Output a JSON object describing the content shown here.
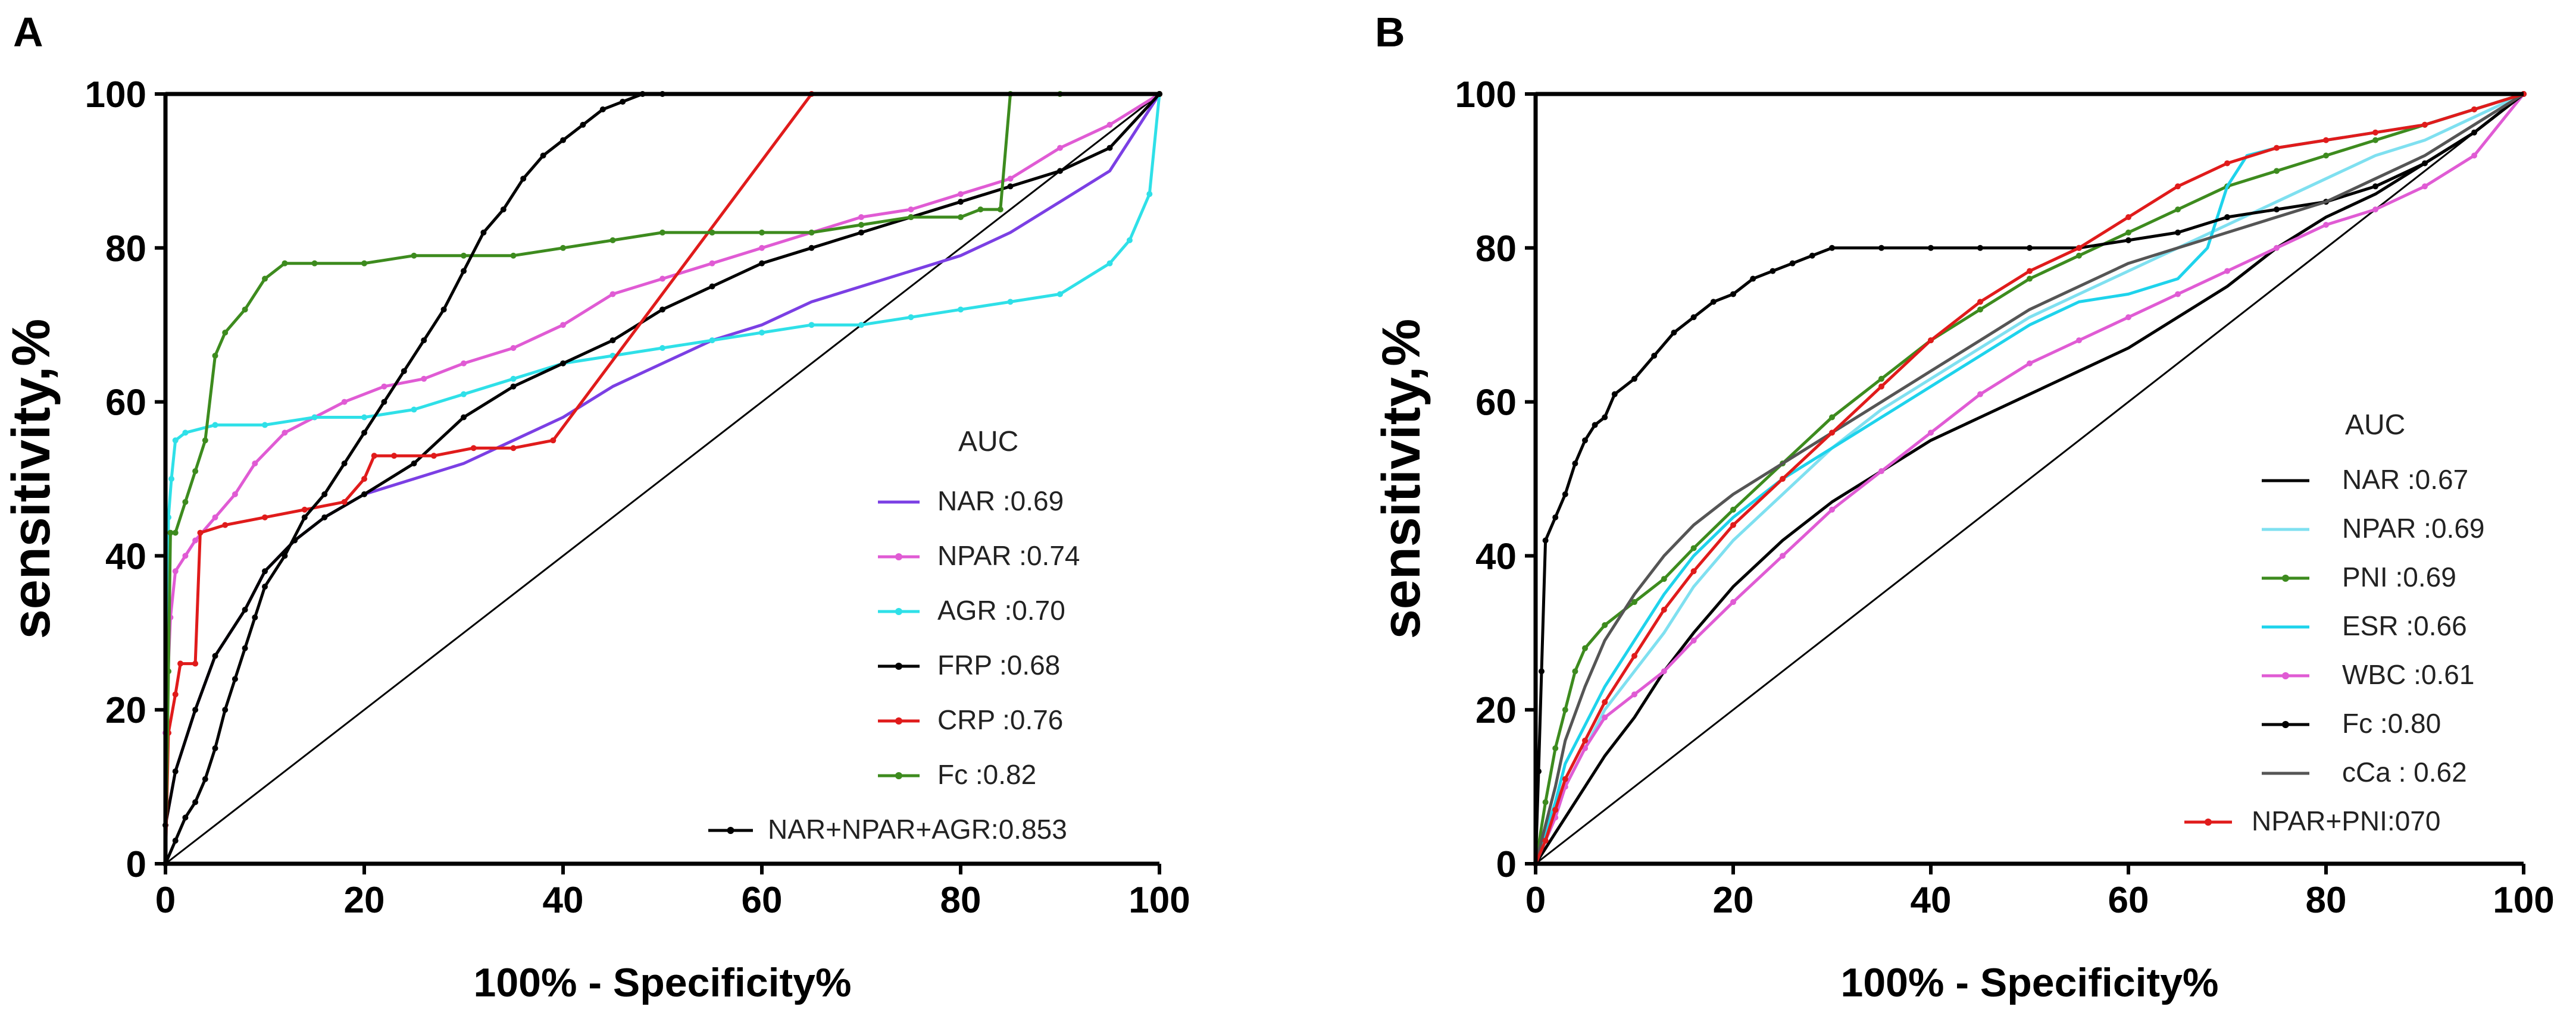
{
  "chart_data": [
    {
      "type": "line",
      "panel_label": "A",
      "xlabel": "100% - Specificity%",
      "ylabel": "sensitivity,%",
      "xlim": [
        0,
        100
      ],
      "ylim": [
        0,
        100
      ],
      "xticks": [
        "0",
        "20",
        "40",
        "60",
        "80",
        "100"
      ],
      "yticks": [
        "0",
        "20",
        "40",
        "60",
        "80",
        "100"
      ],
      "legend_title": "AUC",
      "legend_position": "bottom-right",
      "reference_line": true,
      "series": [
        {
          "name": "NAR",
          "legend": ":0.69",
          "color": "#7b3fe4",
          "markers": false,
          "x": [
            0,
            1,
            3,
            5,
            8,
            10,
            13,
            16,
            20,
            25,
            30,
            35,
            40,
            45,
            50,
            55,
            60,
            65,
            70,
            75,
            80,
            85,
            90,
            95,
            100
          ],
          "y": [
            5,
            12,
            20,
            27,
            33,
            38,
            42,
            45,
            48,
            50,
            52,
            55,
            58,
            62,
            65,
            68,
            70,
            73,
            75,
            77,
            79,
            82,
            86,
            90,
            100
          ]
        },
        {
          "name": "NPAR",
          "legend": ":0.74",
          "color": "#e05bd4",
          "markers": true,
          "x": [
            0,
            0.5,
            1,
            2,
            3,
            5,
            7,
            9,
            12,
            15,
            18,
            22,
            26,
            30,
            35,
            40,
            45,
            50,
            55,
            60,
            65,
            70,
            75,
            80,
            85,
            90,
            95,
            100
          ],
          "y": [
            17,
            32,
            38,
            40,
            42,
            45,
            48,
            52,
            56,
            58,
            60,
            62,
            63,
            65,
            67,
            70,
            74,
            76,
            78,
            80,
            82,
            84,
            85,
            87,
            89,
            93,
            96,
            100
          ]
        },
        {
          "name": "AGR",
          "legend": ":0.70",
          "color": "#2fe0e8",
          "markers": true,
          "x": [
            0,
            0.3,
            0.6,
            1,
            2,
            5,
            10,
            15,
            20,
            25,
            30,
            35,
            40,
            45,
            50,
            55,
            60,
            65,
            70,
            75,
            80,
            85,
            90,
            95,
            97,
            99,
            100
          ],
          "y": [
            0,
            45,
            50,
            55,
            56,
            57,
            57,
            58,
            58,
            59,
            61,
            63,
            65,
            66,
            67,
            68,
            69,
            70,
            70,
            71,
            72,
            73,
            74,
            78,
            81,
            87,
            100
          ]
        },
        {
          "name": "FRP",
          "legend": ":0.68",
          "color": "#000000",
          "markers": true,
          "x": [
            0,
            1,
            3,
            5,
            8,
            10,
            13,
            16,
            20,
            25,
            30,
            35,
            40,
            45,
            50,
            55,
            60,
            65,
            70,
            75,
            80,
            85,
            90,
            95,
            100
          ],
          "y": [
            5,
            12,
            20,
            27,
            33,
            38,
            42,
            45,
            48,
            52,
            58,
            62,
            65,
            68,
            72,
            75,
            78,
            80,
            82,
            84,
            86,
            88,
            90,
            93,
            100
          ]
        },
        {
          "name": "CRP",
          "legend": ":0.76",
          "color": "#e01b1b",
          "markers": true,
          "x": [
            0,
            0.3,
            1,
            1.5,
            3,
            3.5,
            6,
            10,
            14,
            18,
            20,
            21,
            23,
            27,
            31,
            35,
            39,
            65,
            100
          ],
          "y": [
            0,
            17,
            22,
            26,
            26,
            43,
            44,
            45,
            46,
            47,
            50,
            53,
            53,
            53,
            54,
            54,
            55,
            100,
            100
          ]
        },
        {
          "name": "Fc",
          "legend": ":0.82",
          "color": "#3d8b1e",
          "markers": true,
          "x": [
            0,
            0.3,
            0.5,
            1,
            2,
            3,
            4,
            5,
            6,
            8,
            10,
            12,
            15,
            20,
            25,
            30,
            35,
            40,
            45,
            50,
            55,
            60,
            65,
            70,
            75,
            80,
            82,
            84,
            85,
            90,
            100
          ],
          "y": [
            0,
            25,
            43,
            43,
            47,
            51,
            55,
            66,
            69,
            72,
            76,
            78,
            78,
            78,
            79,
            79,
            79,
            80,
            81,
            82,
            82,
            82,
            82,
            83,
            84,
            84,
            85,
            85,
            100,
            100,
            100
          ]
        },
        {
          "name": "NAR+NPAR+AGR",
          "legend": ":0.853",
          "color": "#000000",
          "markers": true,
          "x": [
            0,
            1,
            2,
            3,
            4,
            5,
            6,
            7,
            8,
            9,
            10,
            12,
            14,
            16,
            18,
            20,
            22,
            24,
            26,
            28,
            30,
            32,
            34,
            36,
            38,
            40,
            42,
            44,
            46,
            48,
            50,
            100
          ],
          "y": [
            0,
            3,
            6,
            8,
            11,
            15,
            20,
            24,
            28,
            32,
            36,
            40,
            45,
            48,
            52,
            56,
            60,
            64,
            68,
            72,
            77,
            82,
            85,
            89,
            92,
            94,
            96,
            98,
            99,
            100,
            100,
            100
          ]
        }
      ]
    },
    {
      "type": "line",
      "panel_label": "B",
      "xlabel": "100% - Specificity%",
      "ylabel": "sensitivity,%",
      "xlim": [
        0,
        100
      ],
      "ylim": [
        0,
        100
      ],
      "xticks": [
        "0",
        "20",
        "40",
        "60",
        "80",
        "100"
      ],
      "yticks": [
        "0",
        "20",
        "40",
        "60",
        "80",
        "100"
      ],
      "legend_title": "AUC",
      "legend_position": "bottom-right",
      "reference_line": true,
      "series": [
        {
          "name": "NAR",
          "legend": ":0.67",
          "color": "#000000",
          "markers": false,
          "x": [
            0,
            1,
            2,
            3,
            5,
            7,
            10,
            13,
            16,
            20,
            25,
            30,
            35,
            40,
            45,
            50,
            55,
            60,
            65,
            70,
            75,
            80,
            85,
            90,
            95,
            100
          ],
          "y": [
            0,
            2,
            4,
            6,
            10,
            14,
            19,
            25,
            30,
            36,
            42,
            47,
            51,
            55,
            58,
            61,
            64,
            67,
            71,
            75,
            80,
            84,
            87,
            91,
            95,
            100
          ]
        },
        {
          "name": "NPAR",
          "legend": ":0.69",
          "color": "#7fe0f0",
          "markers": false,
          "x": [
            0,
            1,
            2,
            3,
            5,
            7,
            10,
            13,
            16,
            20,
            25,
            30,
            35,
            40,
            45,
            50,
            55,
            60,
            65,
            70,
            75,
            80,
            85,
            90,
            95,
            100
          ],
          "y": [
            0,
            3,
            6,
            10,
            15,
            20,
            25,
            30,
            36,
            42,
            48,
            54,
            59,
            63,
            67,
            71,
            74,
            77,
            80,
            83,
            86,
            89,
            92,
            94,
            97,
            100
          ]
        },
        {
          "name": "PNI",
          "legend": ":0.69",
          "color": "#3d8b1e",
          "markers": true,
          "x": [
            0,
            1,
            2,
            3,
            4,
            5,
            7,
            10,
            13,
            16,
            20,
            25,
            30,
            35,
            40,
            45,
            50,
            55,
            60,
            65,
            70,
            75,
            80,
            85,
            90,
            95,
            100
          ],
          "y": [
            0,
            8,
            15,
            20,
            25,
            28,
            31,
            34,
            37,
            41,
            46,
            52,
            58,
            63,
            68,
            72,
            76,
            79,
            82,
            85,
            88,
            90,
            92,
            94,
            96,
            98,
            100
          ]
        },
        {
          "name": "ESR",
          "legend": ":0.66",
          "color": "#1ed3ec",
          "markers": false,
          "x": [
            0,
            1,
            2,
            3,
            5,
            7,
            10,
            13,
            16,
            20,
            25,
            30,
            35,
            40,
            45,
            50,
            55,
            60,
            65,
            68,
            70,
            72,
            75,
            80,
            85,
            90,
            95,
            100
          ],
          "y": [
            0,
            4,
            8,
            13,
            18,
            23,
            29,
            35,
            40,
            45,
            50,
            54,
            58,
            62,
            66,
            70,
            73,
            74,
            76,
            80,
            88,
            92,
            93,
            94,
            95,
            96,
            98,
            100
          ]
        },
        {
          "name": "WBC",
          "legend": ":0.61",
          "color": "#e05bd4",
          "markers": true,
          "x": [
            0,
            1,
            2,
            3,
            5,
            7,
            10,
            13,
            16,
            20,
            25,
            30,
            35,
            40,
            45,
            50,
            55,
            60,
            65,
            70,
            75,
            80,
            85,
            90,
            95,
            100
          ],
          "y": [
            0,
            3,
            6,
            10,
            15,
            19,
            22,
            25,
            29,
            34,
            40,
            46,
            51,
            56,
            61,
            65,
            68,
            71,
            74,
            77,
            80,
            83,
            85,
            88,
            92,
            100
          ]
        },
        {
          "name": "Fc",
          "legend": ":0.80",
          "color": "#000000",
          "markers": true,
          "x": [
            0,
            0.3,
            0.6,
            1,
            2,
            3,
            4,
            5,
            6,
            7,
            8,
            10,
            12,
            14,
            16,
            18,
            20,
            22,
            24,
            26,
            28,
            30,
            35,
            40,
            45,
            50,
            55,
            60,
            65,
            70,
            75,
            80,
            85,
            90,
            95,
            100
          ],
          "y": [
            0,
            12,
            25,
            42,
            45,
            48,
            52,
            55,
            57,
            58,
            61,
            63,
            66,
            69,
            71,
            73,
            74,
            76,
            77,
            78,
            79,
            80,
            80,
            80,
            80,
            80,
            80,
            81,
            82,
            84,
            85,
            86,
            88,
            91,
            95,
            100
          ]
        },
        {
          "name": "cCa",
          "legend": ": 0.62",
          "color": "#555555",
          "markers": false,
          "x": [
            0,
            1,
            2,
            3,
            5,
            7,
            10,
            13,
            16,
            20,
            25,
            30,
            35,
            40,
            45,
            50,
            55,
            60,
            65,
            70,
            75,
            80,
            85,
            90,
            95,
            100
          ],
          "y": [
            0,
            5,
            10,
            16,
            23,
            29,
            35,
            40,
            44,
            48,
            52,
            56,
            60,
            64,
            68,
            72,
            75,
            78,
            80,
            82,
            84,
            86,
            89,
            92,
            96,
            100
          ]
        },
        {
          "name": "NPAR+PNI",
          "legend": ":070",
          "color": "#e01b1b",
          "markers": true,
          "x": [
            0,
            1,
            2,
            3,
            5,
            7,
            10,
            13,
            16,
            20,
            25,
            30,
            35,
            40,
            45,
            50,
            55,
            60,
            65,
            70,
            75,
            80,
            85,
            90,
            95,
            100
          ],
          "y": [
            0,
            3,
            7,
            11,
            16,
            21,
            27,
            33,
            38,
            44,
            50,
            56,
            62,
            68,
            73,
            77,
            80,
            84,
            88,
            91,
            93,
            94,
            95,
            96,
            98,
            100
          ]
        }
      ]
    }
  ]
}
